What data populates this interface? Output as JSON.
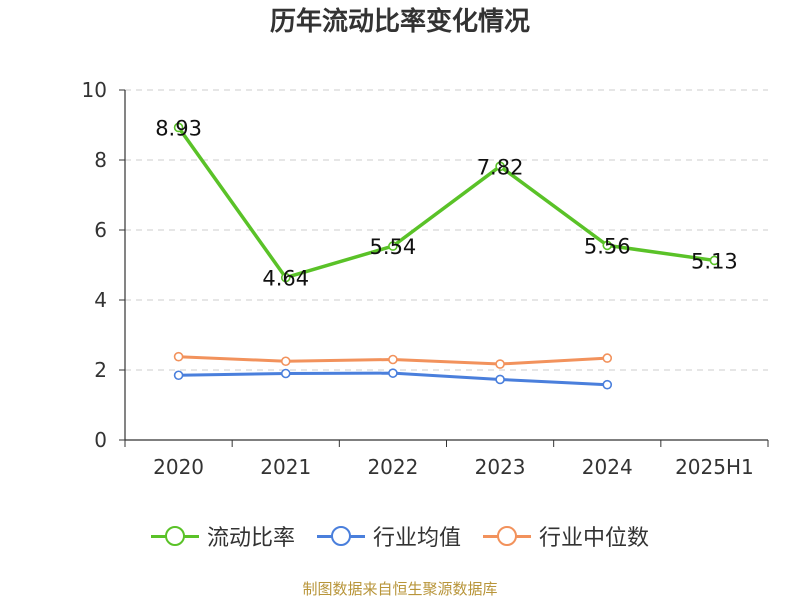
{
  "chart_data": {
    "type": "line",
    "title": "历年流动比率变化情况",
    "categories": [
      "2020",
      "2021",
      "2022",
      "2023",
      "2024",
      "2025H1"
    ],
    "ylim": [
      0,
      10
    ],
    "yticks": [
      0,
      2,
      4,
      6,
      8,
      10
    ],
    "grid": true,
    "legend_position": "bottom",
    "series": [
      {
        "name": "流动比率",
        "color": "#5ac228",
        "values": [
          8.93,
          4.64,
          5.54,
          7.82,
          5.56,
          5.13
        ],
        "labels": [
          "8.93",
          "4.64",
          "5.54",
          "7.82",
          "5.56",
          "5.13"
        ]
      },
      {
        "name": "行业均值",
        "color": "#4a7fdc",
        "values": [
          1.85,
          1.9,
          1.91,
          1.73,
          1.58,
          null
        ]
      },
      {
        "name": "行业中位数",
        "color": "#f2925c",
        "values": [
          2.38,
          2.25,
          2.3,
          2.17,
          2.34,
          null
        ]
      }
    ]
  },
  "source": "制图数据来自恒生聚源数据库"
}
